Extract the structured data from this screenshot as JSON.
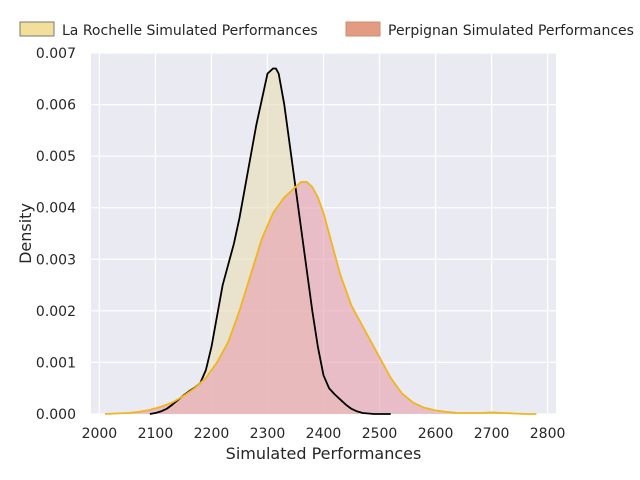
{
  "chart_data": {
    "type": "area",
    "title": "",
    "xlabel": "Simulated Performances",
    "ylabel": "Density",
    "xlim": [
      1985,
      2815
    ],
    "ylim": [
      0,
      0.007
    ],
    "x_ticks": [
      2000,
      2100,
      2200,
      2300,
      2400,
      2500,
      2600,
      2700,
      2800
    ],
    "y_ticks": [
      0.0,
      0.001,
      0.002,
      0.003,
      0.004,
      0.005,
      0.006,
      0.007
    ],
    "x_tick_labels": [
      "2000",
      "2100",
      "2200",
      "2300",
      "2400",
      "2500",
      "2600",
      "2700",
      "2800"
    ],
    "y_tick_labels": [
      "0.000",
      "0.001",
      "0.002",
      "0.003",
      "0.004",
      "0.005",
      "0.006",
      "0.007"
    ],
    "grid": true,
    "legend_position": "top",
    "series": [
      {
        "name": "La Rochelle Simulated Performances",
        "fill_color": "#e8dfb8",
        "legend_color": "#f2df9a",
        "line_color": "#000000",
        "x": [
          2090,
          2100,
          2110,
          2120,
          2130,
          2140,
          2150,
          2160,
          2170,
          2180,
          2190,
          2200,
          2210,
          2220,
          2230,
          2240,
          2250,
          2260,
          2270,
          2280,
          2290,
          2300,
          2310,
          2315,
          2320,
          2330,
          2340,
          2350,
          2360,
          2370,
          2380,
          2390,
          2400,
          2410,
          2420,
          2430,
          2440,
          2450,
          2460,
          2470,
          2480,
          2490,
          2500,
          2510,
          2520
        ],
        "y": [
          0.0,
          2e-05,
          5e-05,
          0.0001,
          0.00018,
          0.00027,
          0.00036,
          0.00044,
          0.00051,
          0.0006,
          0.00085,
          0.0013,
          0.0019,
          0.0025,
          0.0029,
          0.0033,
          0.0038,
          0.0044,
          0.005,
          0.0056,
          0.0061,
          0.0066,
          0.0067,
          0.0067,
          0.0066,
          0.006,
          0.0052,
          0.0044,
          0.0036,
          0.0028,
          0.002,
          0.0013,
          0.00075,
          0.0005,
          0.00038,
          0.00028,
          0.00018,
          0.0001,
          5e-05,
          2e-05,
          1e-05,
          0.0,
          0.0,
          0.0,
          0.0
        ]
      },
      {
        "name": "Perpignan Simulated Performances",
        "fill_color": "#e8a5b0",
        "legend_color": "#e39b82",
        "line_color": "#f0b61e",
        "x": [
          2010,
          2030,
          2050,
          2070,
          2090,
          2110,
          2130,
          2150,
          2170,
          2190,
          2210,
          2230,
          2250,
          2270,
          2290,
          2310,
          2330,
          2350,
          2360,
          2370,
          2380,
          2390,
          2400,
          2410,
          2420,
          2430,
          2440,
          2450,
          2460,
          2480,
          2500,
          2520,
          2540,
          2560,
          2580,
          2600,
          2620,
          2640,
          2660,
          2680,
          2700,
          2720,
          2740,
          2760,
          2780
        ],
        "y": [
          0.0,
          1e-05,
          2e-05,
          4e-05,
          8e-05,
          0.00014,
          0.00022,
          0.00035,
          0.0005,
          0.0007,
          0.001,
          0.0014,
          0.002,
          0.0027,
          0.0034,
          0.0039,
          0.0042,
          0.0044,
          0.0045,
          0.0045,
          0.0044,
          0.0042,
          0.0039,
          0.0035,
          0.0031,
          0.0027,
          0.0024,
          0.0021,
          0.0019,
          0.0015,
          0.0011,
          0.0007,
          0.0004,
          0.00022,
          0.00012,
          7e-05,
          4e-05,
          2e-05,
          2e-05,
          2e-05,
          3e-05,
          2e-05,
          1e-05,
          0.0,
          0.0
        ]
      }
    ]
  }
}
